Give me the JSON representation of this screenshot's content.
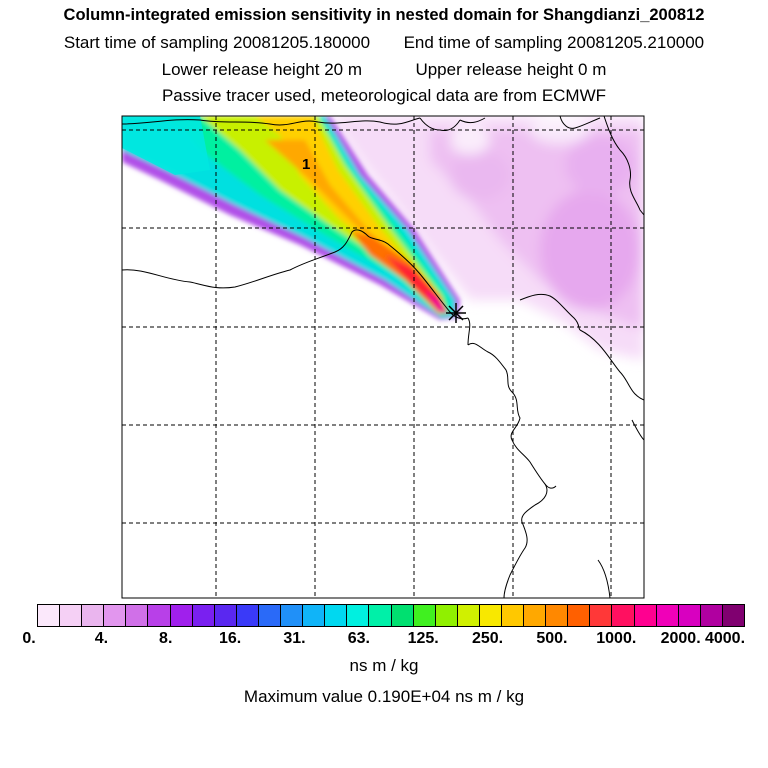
{
  "header": {
    "title": "Column-integrated emission sensitivity in nested domain for Shangdianzi_200812",
    "start_label": "Start time of sampling",
    "start_value": "20081205.180000",
    "end_label": "End time of sampling",
    "end_value": "20081205.210000",
    "lower_label": "Lower release height",
    "lower_value": "20 m",
    "upper_label": "Upper release height",
    "upper_value": "0 m",
    "tracer_note": "Passive tracer used, meteorological data are from ECMWF"
  },
  "map": {
    "marker_label": "1",
    "release_marker": "star-cross-icon"
  },
  "colorbar": {
    "colors": [
      "#fbe8fb",
      "#f5d0f5",
      "#eab5ee",
      "#e296ee",
      "#d070e8",
      "#b840e8",
      "#a020ec",
      "#7a20f0",
      "#5a28f0",
      "#3a3af8",
      "#2a6af8",
      "#2090f8",
      "#10b4f8",
      "#00d8f0",
      "#00f0e0",
      "#00f0a8",
      "#00e070",
      "#40f020",
      "#90f000",
      "#d0f000",
      "#f8e800",
      "#ffc800",
      "#ffa800",
      "#ff8800",
      "#ff6000",
      "#ff3838",
      "#ff1060",
      "#ff0090",
      "#f000b8",
      "#d800c0",
      "#b000a0",
      "#800070"
    ],
    "tick_labels": [
      "0.",
      "4.",
      "8.",
      "16.",
      "31.",
      "63.",
      "125.",
      "250.",
      "500.",
      "1000.",
      "2000.",
      "4000."
    ],
    "unit": "ns m / kg",
    "max_text": "Maximum value  0.190E+04 ns m / kg"
  }
}
